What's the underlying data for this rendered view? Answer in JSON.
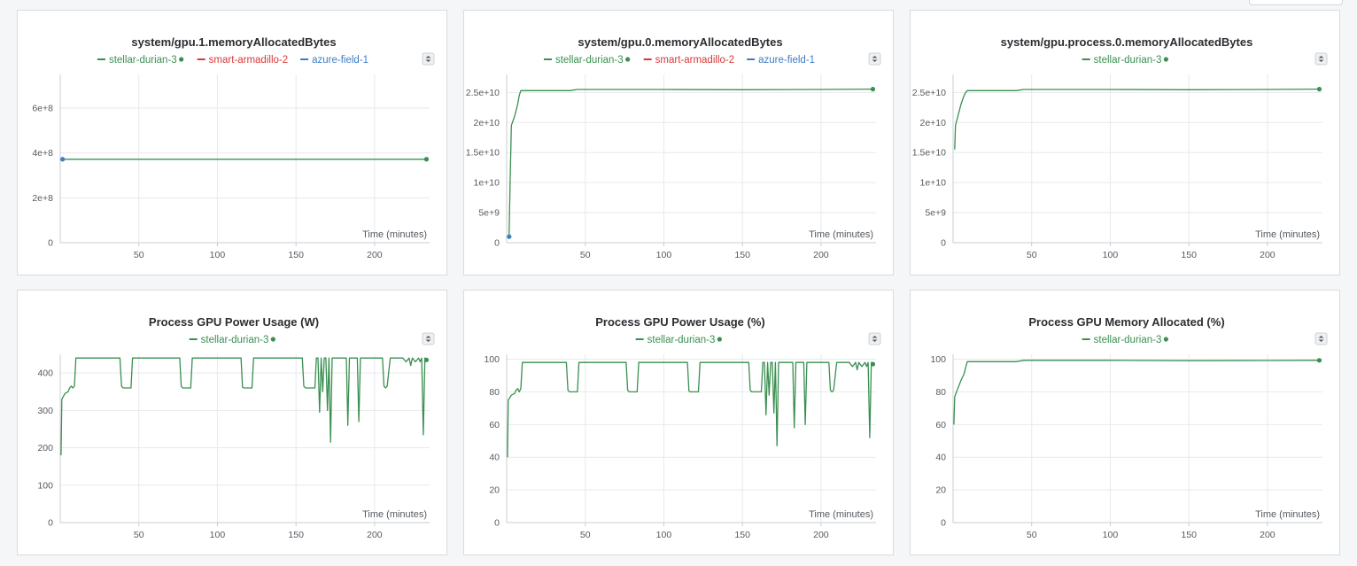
{
  "colors": {
    "green": "#3a8f51",
    "red": "#d73a3a",
    "blue": "#3f7cc6"
  },
  "chart_data": [
    {
      "type": "line",
      "title": "system/gpu.1.memoryAllocatedBytes",
      "xlabel": "Time (minutes)",
      "legend": [
        {
          "name": "stellar-durian-3",
          "color": "#3a8f51",
          "dot": true
        },
        {
          "name": "smart-armadillo-2",
          "color": "#d73a3a",
          "dot": false
        },
        {
          "name": "azure-field-1",
          "color": "#3f7cc6",
          "dot": false
        }
      ],
      "xlim": [
        0,
        235
      ],
      "ylim": [
        0,
        750000000
      ],
      "xticks": [
        50,
        100,
        150,
        200
      ],
      "xtick_labels": [
        "50",
        "100",
        "150",
        "200"
      ],
      "yticks": [
        0,
        200000000,
        400000000,
        600000000
      ],
      "ytick_labels": [
        "0",
        "2e+8",
        "4e+8",
        "6e+8"
      ],
      "series": [
        {
          "name": "stellar-durian-3",
          "color": "#3a8f51",
          "end_dot": true,
          "x": [
            1,
            233
          ],
          "y": [
            372000000,
            372000000
          ]
        },
        {
          "name": "azure-field-1",
          "color": "#3f7cc6",
          "end_dot": true,
          "x": [
            1,
            1.5
          ],
          "y": [
            372000000,
            372000000
          ]
        }
      ]
    },
    {
      "type": "line",
      "title": "system/gpu.0.memoryAllocatedBytes",
      "xlabel": "Time (minutes)",
      "legend": [
        {
          "name": "stellar-durian-3",
          "color": "#3a8f51",
          "dot": true
        },
        {
          "name": "smart-armadillo-2",
          "color": "#d73a3a",
          "dot": false
        },
        {
          "name": "azure-field-1",
          "color": "#3f7cc6",
          "dot": false
        }
      ],
      "xlim": [
        0,
        235
      ],
      "ylim": [
        0,
        28000000000
      ],
      "xticks": [
        50,
        100,
        150,
        200
      ],
      "xtick_labels": [
        "50",
        "100",
        "150",
        "200"
      ],
      "yticks": [
        0,
        5000000000,
        10000000000,
        15000000000,
        20000000000,
        25000000000
      ],
      "ytick_labels": [
        "0",
        "5e+9",
        "1e+10",
        "1.5e+10",
        "2e+10",
        "2.5e+10"
      ],
      "series": [
        {
          "name": "stellar-durian-3",
          "color": "#3a8f51",
          "end_dot": true,
          "x": [
            1.5,
            2.2,
            3,
            5,
            7,
            8,
            9,
            20,
            40,
            45,
            100,
            150,
            200,
            233
          ],
          "y": [
            1000000000,
            10000000000,
            19500000000,
            21000000000,
            23000000000,
            24500000000,
            25300000000,
            25300000000,
            25300000000,
            25500000000,
            25500000000,
            25450000000,
            25500000000,
            25550000000
          ]
        },
        {
          "name": "azure-field-1",
          "color": "#3f7cc6",
          "end_dot": true,
          "x": [
            1.2,
            1.6
          ],
          "y": [
            1000000000,
            1000000000
          ]
        }
      ]
    },
    {
      "type": "line",
      "title": "system/gpu.process.0.memoryAllocatedBytes",
      "xlabel": "Time (minutes)",
      "legend": [
        {
          "name": "stellar-durian-3",
          "color": "#3a8f51",
          "dot": true
        }
      ],
      "xlim": [
        0,
        235
      ],
      "ylim": [
        0,
        28000000000
      ],
      "xticks": [
        50,
        100,
        150,
        200
      ],
      "xtick_labels": [
        "50",
        "100",
        "150",
        "200"
      ],
      "yticks": [
        0,
        5000000000,
        10000000000,
        15000000000,
        20000000000,
        25000000000
      ],
      "ytick_labels": [
        "0",
        "5e+9",
        "1e+10",
        "1.5e+10",
        "2e+10",
        "2.5e+10"
      ],
      "series": [
        {
          "name": "stellar-durian-3",
          "color": "#3a8f51",
          "end_dot": true,
          "x": [
            1,
            1.5,
            3,
            5,
            7,
            8,
            9,
            20,
            40,
            45,
            100,
            150,
            200,
            233
          ],
          "y": [
            15500000000,
            19500000000,
            21000000000,
            23000000000,
            24500000000,
            25000000000,
            25300000000,
            25300000000,
            25300000000,
            25500000000,
            25500000000,
            25450000000,
            25500000000,
            25550000000
          ]
        }
      ]
    },
    {
      "type": "line",
      "title": "Process GPU Power Usage (W)",
      "xlabel": "Time (minutes)",
      "legend": [
        {
          "name": "stellar-durian-3",
          "color": "#3a8f51",
          "dot": true
        }
      ],
      "xlim": [
        0,
        235
      ],
      "ylim": [
        0,
        450
      ],
      "xticks": [
        50,
        100,
        150,
        200
      ],
      "xtick_labels": [
        "50",
        "100",
        "150",
        "200"
      ],
      "yticks": [
        0,
        100,
        200,
        300,
        400
      ],
      "ytick_labels": [
        "0",
        "100",
        "200",
        "300",
        "400"
      ],
      "series": [
        {
          "name": "stellar-durian-3",
          "color": "#3a8f51",
          "end_dot": true,
          "x": [
            0.5,
            1,
            3,
            5,
            6,
            7,
            8,
            9,
            10,
            20,
            30,
            38,
            39,
            40,
            45,
            46,
            47,
            48,
            50,
            60,
            70,
            76,
            77,
            78,
            83,
            84,
            85,
            86,
            90,
            100,
            110,
            115,
            116,
            117,
            122,
            123,
            124,
            125,
            130,
            140,
            150,
            154,
            155,
            156,
            162,
            163,
            164,
            165,
            166,
            167,
            168,
            169,
            170,
            171,
            172,
            173,
            174,
            175,
            178,
            180,
            182,
            183,
            184,
            186,
            188,
            189,
            190,
            191,
            192,
            195,
            197,
            198,
            199,
            200,
            205,
            206,
            207,
            208,
            210,
            215,
            218,
            220,
            222,
            223,
            224,
            226,
            228,
            229,
            230,
            231,
            232,
            233
          ],
          "y": [
            180,
            330,
            345,
            350,
            360,
            365,
            360,
            365,
            440,
            440,
            440,
            440,
            365,
            360,
            360,
            440,
            440,
            440,
            440,
            440,
            440,
            440,
            365,
            360,
            360,
            440,
            440,
            440,
            440,
            440,
            440,
            440,
            362,
            360,
            360,
            440,
            440,
            440,
            440,
            440,
            440,
            440,
            365,
            360,
            360,
            440,
            440,
            295,
            440,
            350,
            440,
            440,
            300,
            440,
            215,
            440,
            440,
            440,
            440,
            440,
            440,
            260,
            440,
            440,
            440,
            440,
            270,
            440,
            440,
            440,
            440,
            440,
            440,
            440,
            440,
            365,
            360,
            365,
            440,
            440,
            440,
            430,
            440,
            420,
            440,
            430,
            440,
            430,
            440,
            235,
            440,
            435
          ]
        }
      ]
    },
    {
      "type": "line",
      "title": "Process GPU Power Usage (%)",
      "xlabel": "Time (minutes)",
      "legend": [
        {
          "name": "stellar-durian-3",
          "color": "#3a8f51",
          "dot": true
        }
      ],
      "xlim": [
        0,
        235
      ],
      "ylim": [
        0,
        103
      ],
      "xticks": [
        50,
        100,
        150,
        200
      ],
      "xtick_labels": [
        "50",
        "100",
        "150",
        "200"
      ],
      "yticks": [
        0,
        20,
        40,
        60,
        80,
        100
      ],
      "ytick_labels": [
        "0",
        "20",
        "40",
        "60",
        "80",
        "100"
      ],
      "series": [
        {
          "name": "stellar-durian-3",
          "color": "#3a8f51",
          "end_dot": true,
          "x": [
            0.5,
            1,
            3,
            5,
            6,
            7,
            8,
            9,
            10,
            20,
            30,
            38,
            39,
            40,
            45,
            46,
            47,
            48,
            50,
            60,
            70,
            76,
            77,
            78,
            83,
            84,
            85,
            86,
            90,
            100,
            110,
            115,
            116,
            117,
            122,
            123,
            124,
            125,
            130,
            140,
            150,
            154,
            155,
            156,
            162,
            163,
            164,
            165,
            166,
            167,
            168,
            169,
            170,
            171,
            172,
            173,
            174,
            175,
            178,
            180,
            182,
            183,
            184,
            186,
            188,
            189,
            190,
            191,
            192,
            195,
            197,
            198,
            199,
            200,
            205,
            206,
            207,
            208,
            210,
            215,
            218,
            220,
            222,
            223,
            224,
            226,
            228,
            229,
            230,
            231,
            232,
            233
          ],
          "y": [
            40,
            75,
            78,
            79,
            81,
            82,
            80,
            82,
            98,
            98,
            98,
            98,
            81,
            80,
            80,
            98,
            98,
            98,
            98,
            98,
            98,
            98,
            81,
            80,
            80,
            98,
            98,
            98,
            98,
            98,
            98,
            98,
            80.5,
            80,
            80,
            98,
            98,
            98,
            98,
            98,
            98,
            98,
            81,
            80,
            80,
            98,
            98,
            66,
            98,
            78,
            98,
            98,
            67,
            98,
            47,
            98,
            98,
            98,
            98,
            98,
            98,
            58,
            98,
            98,
            98,
            98,
            60,
            98,
            98,
            98,
            98,
            98,
            98,
            98,
            98,
            81,
            80,
            81,
            98,
            98,
            98,
            95.5,
            98,
            93.5,
            98,
            95.5,
            98,
            95.5,
            98,
            52,
            98,
            97
          ]
        }
      ]
    },
    {
      "type": "line",
      "title": "Process GPU Memory Allocated (%)",
      "xlabel": "Time (minutes)",
      "legend": [
        {
          "name": "stellar-durian-3",
          "color": "#3a8f51",
          "dot": true
        }
      ],
      "xlim": [
        0,
        235
      ],
      "ylim": [
        0,
        103
      ],
      "xticks": [
        50,
        100,
        150,
        200
      ],
      "xtick_labels": [
        "50",
        "100",
        "150",
        "200"
      ],
      "yticks": [
        0,
        20,
        40,
        60,
        80,
        100
      ],
      "ytick_labels": [
        "0",
        "20",
        "40",
        "60",
        "80",
        "100"
      ],
      "series": [
        {
          "name": "stellar-durian-3",
          "color": "#3a8f51",
          "end_dot": true,
          "x": [
            0.5,
            1,
            3,
            5,
            7,
            8,
            9,
            20,
            40,
            45,
            100,
            150,
            200,
            233
          ],
          "y": [
            60,
            77,
            82,
            87,
            91,
            95,
            98.5,
            98.5,
            98.5,
            99.3,
            99.3,
            99.1,
            99.2,
            99.3
          ]
        }
      ]
    }
  ]
}
